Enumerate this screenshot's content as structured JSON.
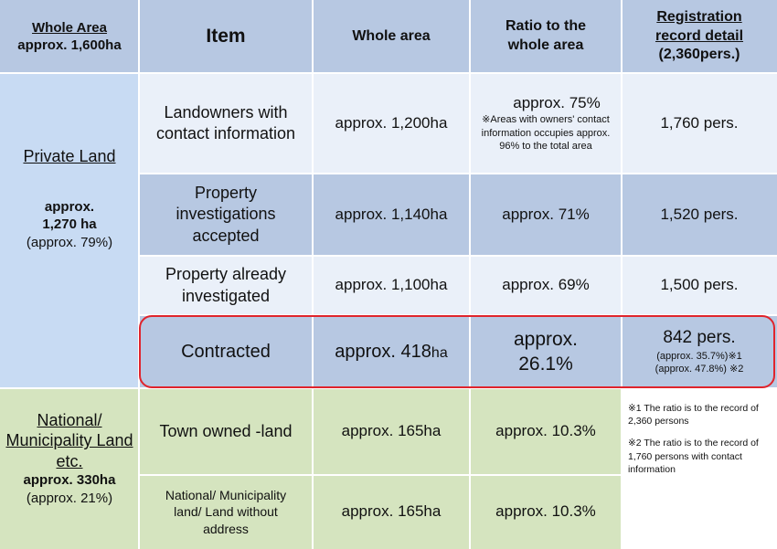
{
  "header": {
    "whole_area_title": "Whole Area",
    "whole_area_sub": "approx. 1,600ha",
    "item": "Item",
    "whole_area": "Whole area",
    "ratio": "Ratio to the whole area",
    "registration_title": "Registration record detail",
    "registration_sub": "(2,360pers.)"
  },
  "private_land": {
    "label": "Private Land",
    "area": "approx. 1,270 ha",
    "ratio": "(approx. 79%)"
  },
  "national_land": {
    "label": "National/ Municipality Land etc.",
    "area": "approx. 330ha",
    "ratio": "(approx. 21%)"
  },
  "rows": [
    {
      "item": "Landowners with contact information",
      "whole_area": "approx. 1,200ha",
      "ratio": "approx. 75%",
      "ratio_note": "※Areas with owners' contact information occupies approx. 96% to the total area",
      "registration": "1,760 pers."
    },
    {
      "item": "Property investigations accepted",
      "whole_area": "approx. 1,140ha",
      "ratio": "approx. 71%",
      "registration": "1,520 pers."
    },
    {
      "item": "Property already investigated",
      "whole_area": "approx. 1,100ha",
      "ratio": "approx. 69%",
      "registration": "1,500 pers."
    },
    {
      "item": "Contracted",
      "whole_area_main": "approx. 418",
      "whole_area_unit": "ha",
      "ratio": "approx. 26.1%",
      "registration": "842 pers.",
      "registration_note1": "(approx. 35.7%)※1",
      "registration_note2": "(approx. 47.8%) ※2"
    },
    {
      "item": "Town owned -land",
      "whole_area": "approx. 165ha",
      "ratio": "approx. 10.3%"
    },
    {
      "item": "National/ Municipality land/ Land without address",
      "whole_area": "approx. 165ha",
      "ratio": "approx. 10.3%"
    }
  ],
  "notes": {
    "note1": "※1 The ratio is to the record of 2,360 persons",
    "note2": "※2 The ratio is to the record of 1,760 persons with contact information"
  },
  "colors": {
    "header_bg": "#b7c8e2",
    "private_bg": "#c8dbf3",
    "national_bg": "#d5e4bf",
    "highlight_border": "#e0242c"
  }
}
